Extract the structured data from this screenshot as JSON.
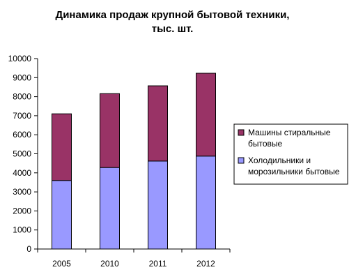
{
  "chart_data": {
    "type": "bar",
    "stacked": true,
    "title_line1": "Динамика продаж крупной бытовой техники,",
    "title_line2": "тыс. шт.",
    "categories": [
      "2005",
      "2010",
      "2011",
      "2012"
    ],
    "series": [
      {
        "name_line1": "Холодильники и",
        "name_line2": "морозильники бытовые",
        "color": "#9999ff",
        "values": [
          3600,
          4280,
          4620,
          4880
        ]
      },
      {
        "name_line1": "Машины стиральные",
        "name_line2": "бытовые",
        "color": "#993366",
        "values": [
          3500,
          3880,
          3950,
          4350
        ]
      }
    ],
    "ylim": [
      0,
      10000
    ],
    "yticks": [
      "0",
      "1000",
      "2000",
      "3000",
      "4000",
      "5000",
      "6000",
      "7000",
      "8000",
      "9000",
      "10000"
    ],
    "grid": false,
    "legend_position": "right"
  }
}
